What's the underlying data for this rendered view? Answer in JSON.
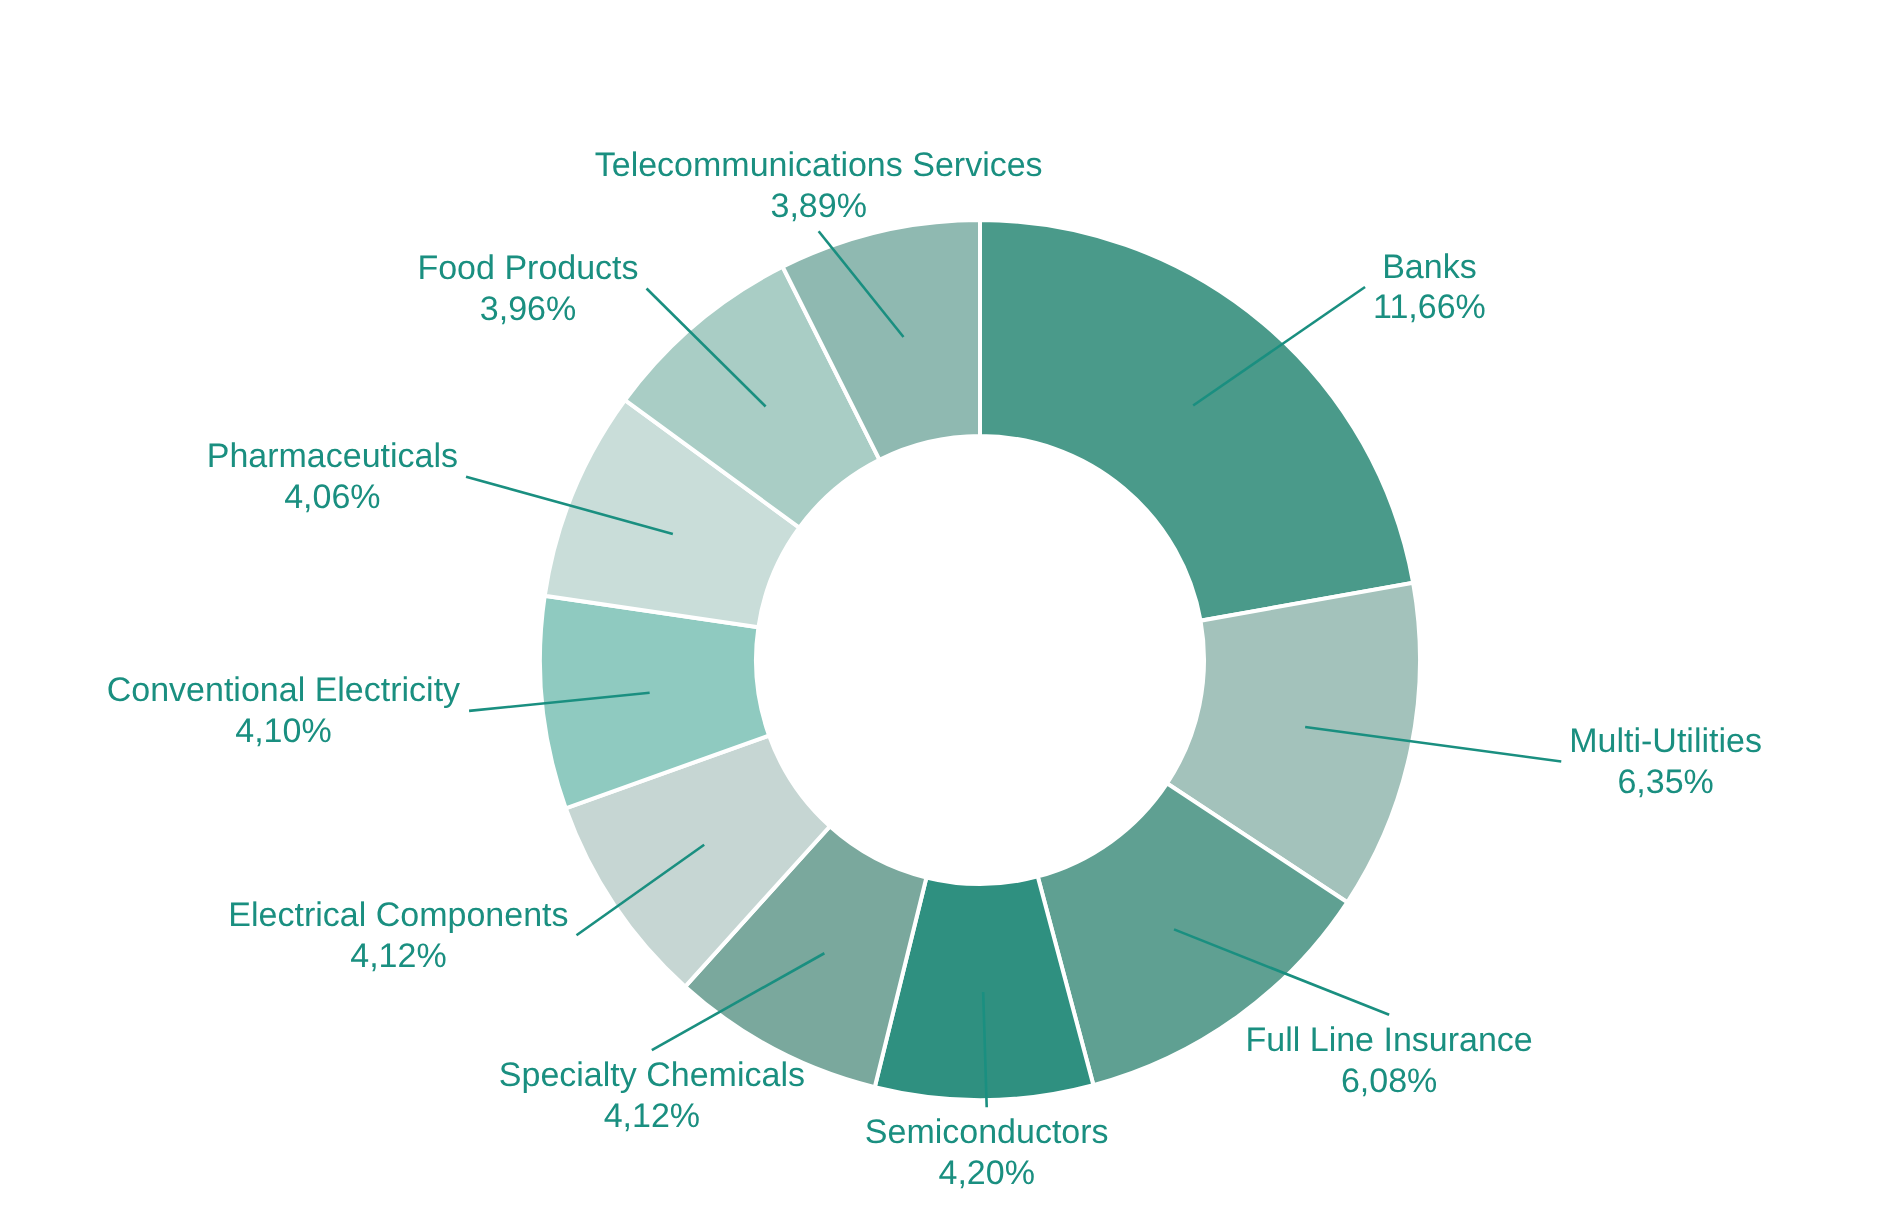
{
  "chart_data": {
    "type": "donut",
    "categories": [
      "Banks",
      "Multi-Utilities",
      "Full Line Insurance",
      "Semiconductors",
      "Specialty Chemicals",
      "Electrical Components",
      "Conventional Electricity",
      "Pharmaceuticals",
      "Food Products",
      "Telecommunications Services"
    ],
    "values": [
      11.66,
      6.35,
      6.08,
      4.2,
      4.12,
      4.12,
      4.1,
      4.06,
      3.96,
      3.89
    ],
    "value_labels": [
      "11,66%",
      "6,35%",
      "6,08%",
      "4,20%",
      "4,12%",
      "4,12%",
      "4,10%",
      "4,06%",
      "3,96%",
      "3,89%"
    ],
    "colors": [
      "#4a9a8a",
      "#a3c2bb",
      "#5fa092",
      "#2f9080",
      "#7aa89d",
      "#c6d6d3",
      "#8fcac0",
      "#c9ddd9",
      "#a9cdc5",
      "#8fb9b1"
    ],
    "legend": false
  }
}
